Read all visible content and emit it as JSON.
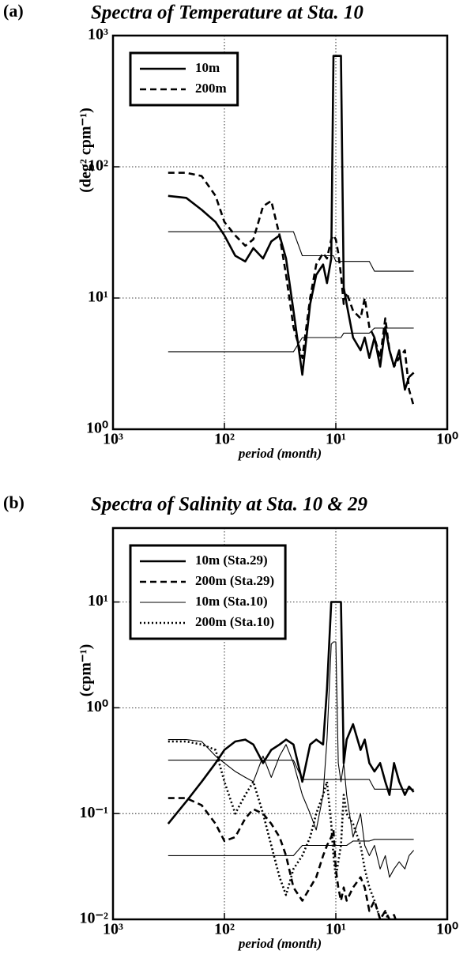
{
  "chart_data": [
    {
      "type": "line",
      "panel": "(a)",
      "title": "Spectra of Temperature  at Sta. 10",
      "x_label": "period (month)",
      "y_label": "(deg² cpm⁻¹)",
      "log_x": true,
      "log_y": true,
      "grid": true,
      "legend": "upper left",
      "xlim": [
        1000,
        1
      ],
      "ylim": [
        1,
        1000
      ],
      "xticks": [
        {
          "value": 1000,
          "label": "10³"
        },
        {
          "value": 100,
          "label": "10²"
        },
        {
          "value": 10,
          "label": "10¹"
        },
        {
          "value": 1,
          "label": "10⁰"
        }
      ],
      "yticks": [
        {
          "value": 1,
          "label": "10⁰"
        },
        {
          "value": 10,
          "label": "10¹"
        },
        {
          "value": 100,
          "label": "10²"
        },
        {
          "value": 1000,
          "label": "10³"
        }
      ],
      "x": [
        320,
        220,
        160,
        120,
        100,
        80,
        65,
        55,
        45,
        38,
        32,
        28,
        24,
        20,
        17,
        15,
        13,
        12,
        11,
        10.5,
        10,
        9.5,
        9,
        8.5,
        8,
        7,
        6,
        5.5,
        5,
        4.5,
        4,
        3.6,
        3.3,
        3,
        2.7,
        2.4,
        2.2,
        2
      ],
      "series": [
        {
          "name": "10m",
          "color": "#000000",
          "line_style": "solid",
          "weight": "bold",
          "values": [
            60,
            58,
            47,
            38,
            30,
            21,
            19,
            24,
            20,
            27,
            30,
            20,
            8,
            2.6,
            9,
            15,
            18,
            13,
            20,
            700,
            700,
            700,
            700,
            12,
            9,
            5,
            4,
            5,
            3.5,
            5,
            3,
            6,
            4,
            3,
            4,
            2,
            2.5,
            2.7
          ]
        },
        {
          "name": "200m",
          "color": "#000000",
          "line_style": "dashed",
          "weight": "bold",
          "values": [
            90,
            90,
            85,
            60,
            38,
            30,
            25,
            28,
            50,
            55,
            30,
            15,
            6,
            3.5,
            10,
            18,
            22,
            20,
            28,
            30,
            28,
            22,
            15,
            9,
            11,
            8,
            7,
            10,
            6,
            5,
            3.5,
            7,
            4,
            3,
            3.5,
            4,
            2,
            1.5
          ]
        },
        {
          "color": "#000000",
          "line_style": "solid",
          "weight": "normal",
          "values": [
            32,
            32,
            32,
            32,
            32,
            32,
            32,
            32,
            32,
            32,
            32,
            32,
            32,
            21,
            21,
            21,
            21,
            21,
            21,
            21,
            19,
            19,
            19,
            19,
            19,
            19,
            19,
            19,
            19,
            16,
            16,
            16,
            16,
            16,
            16,
            16,
            16,
            16
          ]
        },
        {
          "color": "#000000",
          "line_style": "solid",
          "weight": "normal",
          "values": [
            3.9,
            3.9,
            3.9,
            3.9,
            3.9,
            3.9,
            3.9,
            3.9,
            3.9,
            3.9,
            3.9,
            3.9,
            3.9,
            5,
            5,
            5,
            5,
            5,
            5,
            5,
            5,
            5,
            5,
            5.4,
            5.4,
            5.4,
            5.4,
            5.4,
            5.4,
            5.9,
            5.9,
            5.9,
            5.9,
            5.9,
            5.9,
            5.9,
            5.9,
            5.9
          ]
        }
      ]
    },
    {
      "type": "line",
      "panel": "(b)",
      "title": "Spectra of Salinity at Sta. 10 & 29",
      "x_label": "period (month)",
      "y_label": "(cpm⁻¹)",
      "log_x": true,
      "log_y": true,
      "grid": true,
      "legend": "upper left",
      "xlim": [
        1000,
        1
      ],
      "ylim": [
        0.01,
        50
      ],
      "xticks": [
        {
          "value": 1000,
          "label": "10³"
        },
        {
          "value": 100,
          "label": "10²"
        },
        {
          "value": 10,
          "label": "10¹"
        },
        {
          "value": 1,
          "label": "10⁰"
        }
      ],
      "yticks": [
        {
          "value": 0.01,
          "label": "10⁻²"
        },
        {
          "value": 0.1,
          "label": "10⁻¹"
        },
        {
          "value": 1,
          "label": "10⁰"
        },
        {
          "value": 10,
          "label": "10¹"
        }
      ],
      "x": [
        320,
        220,
        160,
        120,
        100,
        80,
        65,
        55,
        45,
        38,
        32,
        28,
        24,
        20,
        17,
        15,
        13,
        12,
        11,
        10.5,
        10,
        9.5,
        9,
        8.5,
        8,
        7,
        6,
        5.5,
        5,
        4.5,
        4,
        3.6,
        3.3,
        3,
        2.7,
        2.4,
        2.2,
        2
      ],
      "series": [
        {
          "name": "10m (Sta.29)",
          "color": "#000000",
          "line_style": "solid",
          "weight": "bold",
          "values": [
            0.08,
            0.13,
            0.2,
            0.3,
            0.4,
            0.48,
            0.5,
            0.45,
            0.3,
            0.4,
            0.45,
            0.5,
            0.45,
            0.2,
            0.45,
            0.5,
            0.45,
            1.5,
            10,
            10,
            10,
            10,
            10,
            0.3,
            0.5,
            0.7,
            0.4,
            0.5,
            0.3,
            0.25,
            0.3,
            0.2,
            0.15,
            0.3,
            0.2,
            0.15,
            0.18,
            0.16
          ]
        },
        {
          "name": "200m (Sta.29)",
          "color": "#000000",
          "line_style": "dashed",
          "weight": "bold",
          "values": [
            0.14,
            0.14,
            0.12,
            0.08,
            0.055,
            0.06,
            0.09,
            0.11,
            0.1,
            0.08,
            0.06,
            0.04,
            0.02,
            0.015,
            0.02,
            0.025,
            0.04,
            0.05,
            0.06,
            0.07,
            0.03,
            0.02,
            0.015,
            0.02,
            0.015,
            0.02,
            0.025,
            0.02,
            0.012,
            0.015,
            0.01,
            0.012,
            0.01,
            0.011,
            0.008,
            0.008,
            0.008,
            0.008
          ]
        },
        {
          "name": "10m (Sta.10)",
          "color": "#000000",
          "line_style": "solid",
          "weight": "normal",
          "values": [
            0.5,
            0.5,
            0.48,
            0.35,
            0.3,
            0.25,
            0.22,
            0.2,
            0.35,
            0.22,
            0.35,
            0.45,
            0.3,
            0.15,
            0.1,
            0.07,
            0.15,
            0.5,
            4,
            4.2,
            4.2,
            0.3,
            0.2,
            0.3,
            0.15,
            0.06,
            0.1,
            0.05,
            0.04,
            0.05,
            0.03,
            0.04,
            0.025,
            0.03,
            0.035,
            0.03,
            0.04,
            0.045
          ]
        },
        {
          "name": "200m (Sta.10)",
          "color": "#000000",
          "line_style": "dotted",
          "weight": "bold",
          "values": [
            0.48,
            0.48,
            0.45,
            0.4,
            0.2,
            0.1,
            0.15,
            0.2,
            0.1,
            0.05,
            0.025,
            0.017,
            0.03,
            0.04,
            0.06,
            0.1,
            0.15,
            0.2,
            0.08,
            0.04,
            0.025,
            0.035,
            0.05,
            0.15,
            0.1,
            0.08,
            0.05,
            0.03,
            0.02,
            0.015,
            0.01,
            0.012,
            0.009,
            0.009,
            0.008,
            0.008,
            0.008,
            0.008
          ]
        },
        {
          "color": "#000000",
          "line_style": "solid",
          "weight": "normal",
          "values": [
            0.32,
            0.32,
            0.32,
            0.32,
            0.32,
            0.32,
            0.32,
            0.32,
            0.32,
            0.32,
            0.32,
            0.32,
            0.32,
            0.21,
            0.21,
            0.21,
            0.21,
            0.21,
            0.21,
            0.21,
            0.21,
            0.21,
            0.21,
            0.21,
            0.21,
            0.21,
            0.21,
            0.21,
            0.21,
            0.17,
            0.17,
            0.17,
            0.17,
            0.17,
            0.17,
            0.17,
            0.17,
            0.17
          ]
        },
        {
          "color": "#000000",
          "line_style": "solid",
          "weight": "normal",
          "values": [
            0.04,
            0.04,
            0.04,
            0.04,
            0.04,
            0.04,
            0.04,
            0.04,
            0.04,
            0.04,
            0.04,
            0.04,
            0.04,
            0.05,
            0.05,
            0.05,
            0.05,
            0.05,
            0.05,
            0.05,
            0.05,
            0.05,
            0.05,
            0.05,
            0.05,
            0.055,
            0.055,
            0.055,
            0.055,
            0.057,
            0.057,
            0.057,
            0.057,
            0.057,
            0.057,
            0.057,
            0.057,
            0.057
          ]
        }
      ]
    }
  ]
}
